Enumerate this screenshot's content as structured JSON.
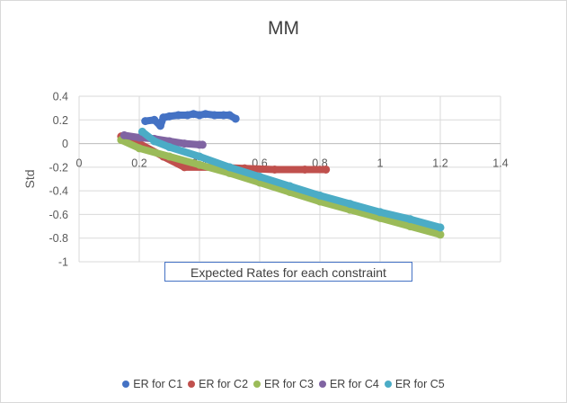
{
  "chart_data": {
    "type": "scatter",
    "title": "MM",
    "xlabel": "Expected Rates for each constraint",
    "ylabel": "Std",
    "xlim": [
      0,
      1.4
    ],
    "ylim": [
      -1,
      0.4
    ],
    "xticks": [
      0,
      0.2,
      0.4,
      0.6,
      0.8,
      1,
      1.2,
      1.4
    ],
    "yticks": [
      0.4,
      0.2,
      0,
      -0.2,
      -0.4,
      -0.6,
      -0.8,
      -1
    ],
    "xtick_labels": [
      "0",
      "0.2",
      "0.4",
      "0.6",
      "0.8",
      "1",
      "1.2",
      "1.4"
    ],
    "ytick_labels": [
      "0.4",
      "0.2",
      "0",
      "-0.2",
      "-0.4",
      "-0.6",
      "-0.8",
      "-1"
    ],
    "grid": true,
    "legend_position": "bottom",
    "series": [
      {
        "name": "ER for C1",
        "color": "#4472c4",
        "points": [
          [
            0.22,
            0.19
          ],
          [
            0.25,
            0.2
          ],
          [
            0.27,
            0.15
          ],
          [
            0.28,
            0.22
          ],
          [
            0.3,
            0.23
          ],
          [
            0.33,
            0.24
          ],
          [
            0.36,
            0.24
          ],
          [
            0.38,
            0.25
          ],
          [
            0.4,
            0.24
          ],
          [
            0.42,
            0.25
          ],
          [
            0.45,
            0.24
          ],
          [
            0.48,
            0.24
          ],
          [
            0.5,
            0.24
          ],
          [
            0.52,
            0.21
          ]
        ]
      },
      {
        "name": "ER for C2",
        "color": "#c0504d",
        "points": [
          [
            0.14,
            0.06
          ],
          [
            0.2,
            0.0
          ],
          [
            0.28,
            -0.11
          ],
          [
            0.35,
            -0.2
          ],
          [
            0.45,
            -0.2
          ],
          [
            0.55,
            -0.21
          ],
          [
            0.65,
            -0.22
          ],
          [
            0.75,
            -0.22
          ],
          [
            0.82,
            -0.22
          ]
        ]
      },
      {
        "name": "ER for C3",
        "color": "#9bbb59",
        "points": [
          [
            0.14,
            0.03
          ],
          [
            0.2,
            -0.04
          ],
          [
            0.3,
            -0.11
          ],
          [
            0.4,
            -0.18
          ],
          [
            0.5,
            -0.25
          ],
          [
            0.6,
            -0.33
          ],
          [
            0.7,
            -0.41
          ],
          [
            0.8,
            -0.49
          ],
          [
            0.9,
            -0.56
          ],
          [
            1.0,
            -0.63
          ],
          [
            1.1,
            -0.7
          ],
          [
            1.2,
            -0.77
          ]
        ]
      },
      {
        "name": "ER for C4",
        "color": "#8064a2",
        "points": [
          [
            0.15,
            0.07
          ],
          [
            0.2,
            0.05
          ],
          [
            0.25,
            0.04
          ],
          [
            0.3,
            0.02
          ],
          [
            0.35,
            0.0
          ],
          [
            0.4,
            -0.01
          ],
          [
            0.41,
            -0.01
          ]
        ]
      },
      {
        "name": "ER for C5",
        "color": "#4bacc6",
        "points": [
          [
            0.21,
            0.1
          ],
          [
            0.25,
            0.02
          ],
          [
            0.3,
            -0.03
          ],
          [
            0.4,
            -0.11
          ],
          [
            0.5,
            -0.2
          ],
          [
            0.6,
            -0.28
          ],
          [
            0.7,
            -0.36
          ],
          [
            0.8,
            -0.44
          ],
          [
            0.9,
            -0.51
          ],
          [
            1.0,
            -0.58
          ],
          [
            1.1,
            -0.64
          ],
          [
            1.2,
            -0.71
          ]
        ]
      }
    ]
  }
}
